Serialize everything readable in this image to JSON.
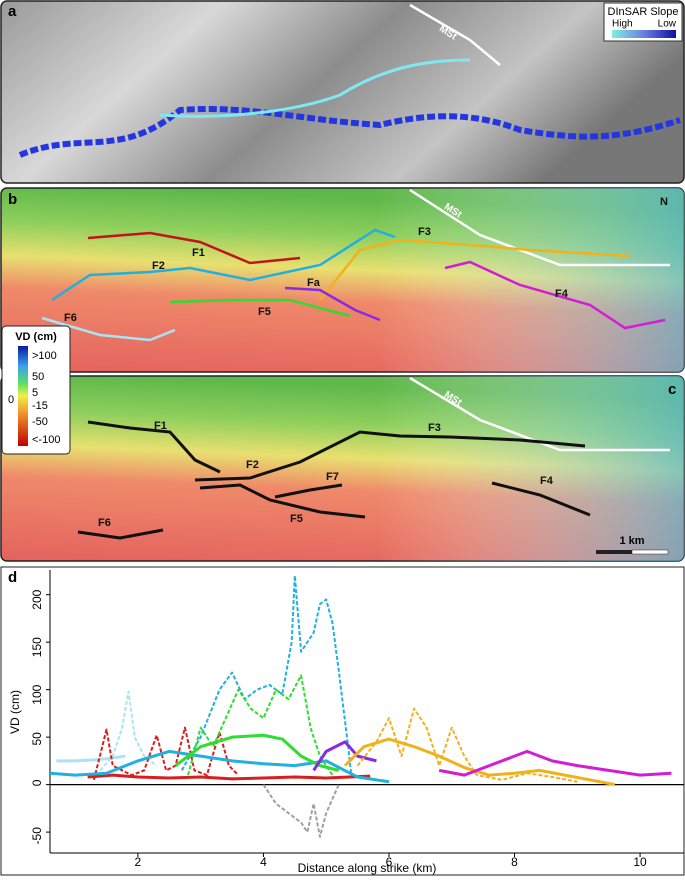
{
  "panels": {
    "a": {
      "label": "a",
      "legend_title": "DInSAR Slope",
      "legend_high": "High",
      "legend_low": "Low",
      "thrust": "MSt"
    },
    "b": {
      "label": "b",
      "thrust": "MSt",
      "faults": [
        "F1",
        "F2",
        "F3",
        "F4",
        "F5",
        "F6",
        "Fa"
      ],
      "north": "N"
    },
    "c": {
      "label": "c",
      "thrust": "MSt",
      "faults": [
        "F1",
        "F2",
        "F3",
        "F4",
        "F5",
        "F6",
        "F7"
      ],
      "scale": "1 km"
    },
    "legend": {
      "title": "VD (cm)",
      "labels": [
        ">100",
        "50",
        "5",
        "-15",
        "-50",
        "<-100"
      ],
      "zero": "0"
    },
    "d": {
      "label": "d"
    }
  },
  "chart_data": {
    "type": "line",
    "xlabel": "Distance along strike (km)",
    "ylabel": "VD (cm)",
    "xlim": [
      0.6,
      10.7
    ],
    "xticks": [
      2,
      4,
      6,
      8,
      10
    ],
    "ylim": [
      -72,
      226
    ],
    "yticks": [
      -50,
      0,
      50,
      100,
      150,
      200
    ],
    "grid": false,
    "series": [
      {
        "color": "#a8e4f4",
        "dashed": false,
        "x": [
          0.7,
          1.0,
          1.3,
          1.6,
          1.8
        ],
        "values": [
          25,
          25,
          26,
          28,
          30
        ]
      },
      {
        "color": "#a8e4f4",
        "dashed": true,
        "x": [
          1.4,
          1.6,
          1.75,
          1.85,
          1.95,
          2.1,
          2.3
        ],
        "values": [
          15,
          30,
          60,
          98,
          50,
          30,
          20
        ]
      },
      {
        "color": "#d81e1e",
        "dashed": false,
        "x": [
          1.2,
          1.6,
          2.0,
          2.5,
          3.0,
          3.5,
          4.0,
          4.5,
          5.0,
          5.7
        ],
        "values": [
          8,
          10,
          8,
          7,
          8,
          6,
          7,
          8,
          7,
          9
        ]
      },
      {
        "color": "#d81e1e",
        "dashed": true,
        "x": [
          1.3,
          1.5,
          1.6,
          1.9,
          2.1,
          2.3,
          2.45,
          2.6,
          2.75,
          2.9,
          3.1,
          3.3,
          3.45,
          3.6
        ],
        "values": [
          5,
          58,
          20,
          10,
          15,
          52,
          15,
          20,
          60,
          15,
          10,
          55,
          20,
          10
        ]
      },
      {
        "color": "#22b0e0",
        "dashed": false,
        "x": [
          0.6,
          1.0,
          1.5,
          2.0,
          2.5,
          3.0,
          3.5,
          4.0,
          4.5,
          5.0,
          5.5,
          6.0
        ],
        "values": [
          12,
          10,
          12,
          25,
          35,
          30,
          25,
          22,
          20,
          25,
          8,
          3
        ]
      },
      {
        "color": "#22b0e0",
        "dashed": true,
        "x": [
          2.7,
          3.0,
          3.3,
          3.5,
          3.7,
          3.9,
          4.1,
          4.3,
          4.45,
          4.5,
          4.6,
          4.8,
          4.9,
          5.0,
          5.1,
          5.2,
          5.35,
          5.4
        ],
        "values": [
          15,
          50,
          100,
          118,
          90,
          100,
          105,
          95,
          150,
          220,
          140,
          160,
          190,
          195,
          170,
          120,
          40,
          10
        ]
      },
      {
        "color": "#2fdc2f",
        "dashed": false,
        "x": [
          2.6,
          3.0,
          3.5,
          4.0,
          4.3,
          4.6,
          4.9,
          5.2
        ],
        "values": [
          20,
          40,
          50,
          52,
          48,
          30,
          20,
          15
        ]
      },
      {
        "color": "#2fdc2f",
        "dashed": true,
        "x": [
          2.8,
          3.0,
          3.2,
          3.4,
          3.6,
          3.8,
          4.0,
          4.2,
          4.4,
          4.6,
          4.75,
          4.9,
          5.1
        ],
        "values": [
          10,
          60,
          40,
          70,
          100,
          80,
          70,
          100,
          90,
          115,
          60,
          30,
          10
        ]
      },
      {
        "color": "#8a2be2",
        "dashed": false,
        "x": [
          4.8,
          5.0,
          5.3,
          5.5,
          5.8
        ],
        "values": [
          15,
          35,
          45,
          30,
          25
        ]
      },
      {
        "color": "#f0b21c",
        "dashed": false,
        "x": [
          5.3,
          5.6,
          6.0,
          6.4,
          6.8,
          7.2,
          7.6,
          8.0,
          8.4,
          8.8,
          9.2,
          9.6
        ],
        "values": [
          20,
          40,
          48,
          40,
          30,
          18,
          10,
          12,
          15,
          10,
          5,
          0
        ]
      },
      {
        "color": "#f0b21c",
        "dashed": true,
        "x": [
          5.5,
          5.8,
          6.0,
          6.2,
          6.4,
          6.6,
          6.8,
          7.0,
          7.2,
          7.4,
          7.8,
          8.2,
          8.6,
          9.0
        ],
        "values": [
          20,
          45,
          70,
          30,
          80,
          60,
          20,
          60,
          30,
          10,
          5,
          12,
          8,
          3
        ]
      },
      {
        "color": "#d21ed2",
        "dashed": false,
        "x": [
          6.8,
          7.2,
          7.6,
          8.0,
          8.2,
          8.6,
          9.0,
          9.5,
          10.0,
          10.5
        ],
        "values": [
          15,
          10,
          20,
          30,
          35,
          25,
          20,
          15,
          10,
          12
        ]
      },
      {
        "color": "#a0a0a0",
        "dashed": true,
        "x": [
          4.0,
          4.2,
          4.4,
          4.6,
          4.7,
          4.8,
          4.9,
          5.0,
          5.2
        ],
        "values": [
          0,
          -20,
          -30,
          -40,
          -50,
          -20,
          -55,
          -30,
          0
        ]
      }
    ]
  }
}
